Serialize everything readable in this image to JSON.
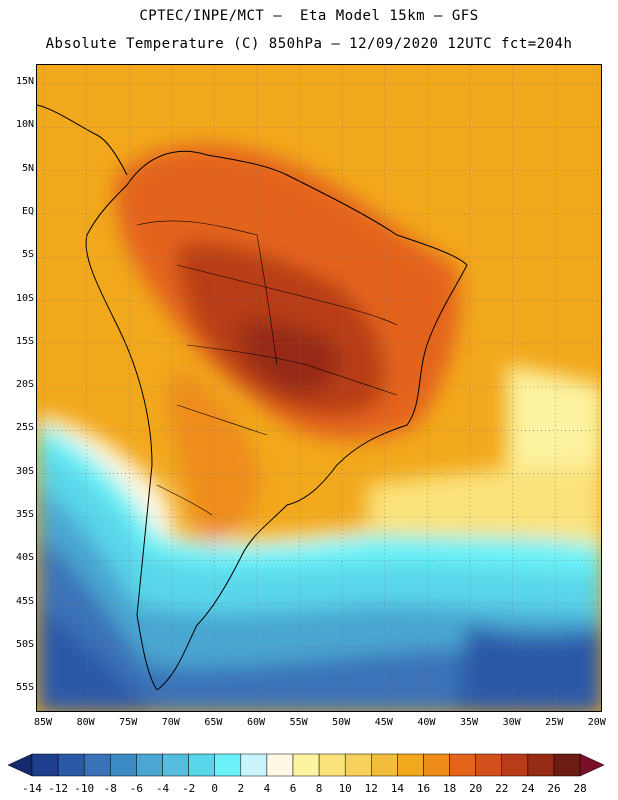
{
  "header": {
    "line1": "CPTEC/INPE/MCT –  Eta Model 15km – GFS",
    "line2": "Absolute Temperature (C) 850hPa – 12/09/2020 12UTC fct=204h"
  },
  "map": {
    "lat_labels": [
      "15N",
      "10N",
      "5N",
      "EQ",
      "5S",
      "10S",
      "15S",
      "20S",
      "25S",
      "30S",
      "35S",
      "40S",
      "45S",
      "50S",
      "55S"
    ],
    "lon_labels": [
      "85W",
      "80W",
      "75W",
      "70W",
      "65W",
      "60W",
      "55W",
      "50W",
      "45W",
      "40W",
      "35W",
      "30W",
      "25W",
      "20W"
    ]
  },
  "colorbar": {
    "labels": [
      "-14",
      "-12",
      "-10",
      "-8",
      "-6",
      "-4",
      "-2",
      "0",
      "2",
      "4",
      "6",
      "8",
      "10",
      "12",
      "14",
      "16",
      "18",
      "20",
      "22",
      "24",
      "26",
      "28"
    ],
    "colors": [
      "#1f3f8f",
      "#2b59a8",
      "#3a72b8",
      "#3b8ac4",
      "#4aa6d2",
      "#55bede",
      "#5ad6ea",
      "#6af2f8",
      "#c9f4fc",
      "#fff8e4",
      "#fdf3a0",
      "#fbe27a",
      "#f8d05c",
      "#f3bd3c",
      "#f2a81c",
      "#ee8c1a",
      "#e4641a",
      "#d2501c",
      "#b83c18",
      "#962c14",
      "#6c1c10"
    ],
    "under_color": "#152a6c",
    "over_color": "#7a0f2a"
  }
}
